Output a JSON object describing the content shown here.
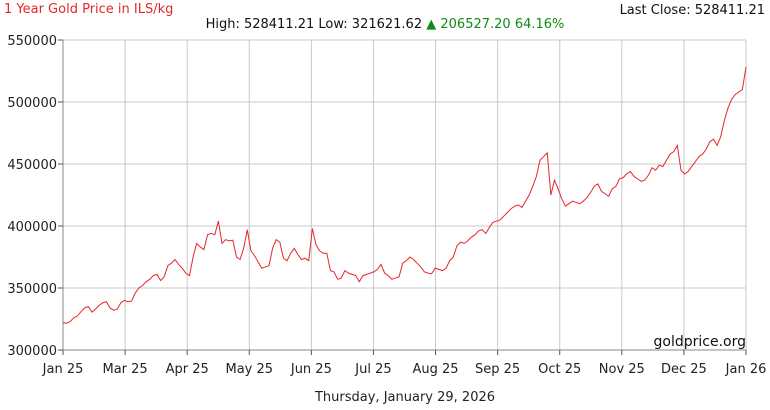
{
  "header": {
    "title": "1 Year Gold Price in ILS/kg",
    "last_close": "Last Close: 528411.21",
    "high_low": "High: 528411.21 Low: 321621.62",
    "change_arrow": "▲",
    "change": "206527.20 64.16%"
  },
  "footer": {
    "date": "Thursday, January 29, 2026"
  },
  "watermark": "goldprice.org",
  "colors": {
    "line": "#e8262a",
    "grid": "#c8c8c8",
    "up": "#118a16"
  },
  "chart_data": {
    "type": "line",
    "title": "1 Year Gold Price in ILS/kg",
    "ylim": [
      300000,
      550000
    ],
    "y_ticks": [
      "300000",
      "350000",
      "400000",
      "450000",
      "500000",
      "550000"
    ],
    "y_tick_values": [
      300000,
      350000,
      400000,
      450000,
      500000,
      550000
    ],
    "x_ticks": [
      "Jan 25",
      "Mar 25",
      "Apr 25",
      "May 25",
      "Jun 25",
      "Jul 25",
      "Aug 25",
      "Sep 25",
      "Oct 25",
      "Nov 25",
      "Dec 25",
      "Jan 26"
    ],
    "grid": true,
    "series": [
      {
        "values": [
          322000,
          321622,
          323000,
          326000,
          327500,
          331000,
          334000,
          335000,
          330500,
          333000,
          336000,
          338000,
          339000,
          334000,
          332000,
          333000,
          338000,
          340000,
          339000,
          339500,
          346000,
          350000,
          352000,
          355000,
          357000,
          360000,
          361000,
          356000,
          359000,
          368000,
          370000,
          373000,
          369000,
          366000,
          362000,
          360000,
          375000,
          386000,
          383000,
          381000,
          393000,
          394000,
          393000,
          404000,
          386000,
          389000,
          388000,
          388500,
          375000,
          373000,
          382000,
          397000,
          380000,
          376000,
          371000,
          366000,
          367000,
          368000,
          382000,
          389000,
          387000,
          374000,
          372000,
          378000,
          382000,
          377000,
          373000,
          374000,
          372000,
          398000,
          385000,
          380000,
          378000,
          378000,
          364000,
          363000,
          357000,
          358000,
          364000,
          362000,
          361000,
          360000,
          355000,
          360000,
          361000,
          362000,
          363000,
          365000,
          369000,
          362000,
          360000,
          357000,
          358000,
          359000,
          370000,
          372000,
          375000,
          373000,
          370000,
          367000,
          363000,
          362000,
          361500,
          366000,
          365000,
          364000,
          366000,
          372000,
          375000,
          384000,
          387000,
          386000,
          388000,
          391000,
          393000,
          396000,
          397000,
          394000,
          399000,
          403000,
          404000,
          405000,
          408000,
          411000,
          414000,
          416000,
          417000,
          415000,
          420000,
          425000,
          432000,
          440000,
          453000,
          456000,
          459000,
          425000,
          437000,
          430000,
          422000,
          416000,
          418000,
          420000,
          419000,
          418000,
          420000,
          423000,
          427000,
          432000,
          434000,
          428000,
          426000,
          424000,
          430000,
          432000,
          438000,
          439000,
          442000,
          444000,
          440000,
          438000,
          436000,
          437000,
          441000,
          447000,
          445000,
          449000,
          448000,
          453000,
          458000,
          460000,
          465000,
          445000,
          442000,
          444000,
          448000,
          452000,
          456000,
          458000,
          462000,
          468000,
          470000,
          465000,
          472000,
          485000,
          495000,
          502000,
          506000,
          508000,
          510000,
          528411
        ]
      }
    ]
  }
}
